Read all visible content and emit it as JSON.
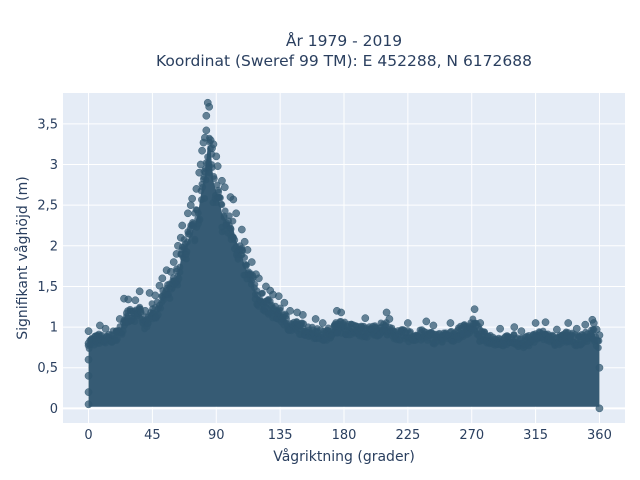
{
  "chart_data": {
    "type": "scatter",
    "title": [
      "År 1979 - 2019",
      "Koordinat (Sweref 99 TM): E 452288, N 6172688"
    ],
    "xlabel": "Vågriktning (grader)",
    "ylabel": "Signifikant våghöjd (m)",
    "xlim": [
      -18,
      378
    ],
    "ylim": [
      -0.18,
      3.88
    ],
    "x_ticks": [
      0,
      45,
      90,
      135,
      180,
      225,
      270,
      315,
      360
    ],
    "x_tick_labels": [
      "0",
      "45",
      "90",
      "135",
      "180",
      "225",
      "270",
      "315",
      "360"
    ],
    "y_ticks": [
      0,
      0.5,
      1,
      1.5,
      2,
      2.5,
      3,
      3.5
    ],
    "y_tick_labels": [
      "0",
      "0,5",
      "1",
      "1,5",
      "2",
      "2,5",
      "3",
      "3,5"
    ],
    "grid": true,
    "marker_color": "#2f566f",
    "plot_bg": "#e5ecf6",
    "series": [
      {
        "points": [
          [
            0,
            0.95
          ],
          [
            0,
            0.8
          ],
          [
            0,
            0.6
          ],
          [
            0,
            0.4
          ],
          [
            0,
            0.2
          ],
          [
            0,
            0.05
          ],
          [
            8,
            1.02
          ],
          [
            12,
            0.98
          ],
          [
            22,
            1.1
          ],
          [
            25,
            1.35
          ],
          [
            28,
            1.34
          ],
          [
            33,
            1.33
          ],
          [
            36,
            1.44
          ],
          [
            40,
            1.2
          ],
          [
            43,
            1.42
          ],
          [
            47,
            1.39
          ],
          [
            50,
            1.51
          ],
          [
            52,
            1.6
          ],
          [
            55,
            1.7
          ],
          [
            58,
            1.68
          ],
          [
            60,
            1.8
          ],
          [
            62,
            1.9
          ],
          [
            63,
            2.0
          ],
          [
            65,
            2.1
          ],
          [
            66,
            2.25
          ],
          [
            70,
            2.4
          ],
          [
            72,
            2.5
          ],
          [
            73,
            2.58
          ],
          [
            76,
            2.7
          ],
          [
            78,
            2.9
          ],
          [
            79,
            3.0
          ],
          [
            80,
            3.17
          ],
          [
            81,
            3.27
          ],
          [
            82,
            3.33
          ],
          [
            83,
            3.42
          ],
          [
            83,
            3.6
          ],
          [
            84,
            3.76
          ],
          [
            85,
            3.71
          ],
          [
            86,
            3.3
          ],
          [
            87,
            3.2
          ],
          [
            88,
            3.25
          ],
          [
            90,
            3.1
          ],
          [
            91,
            2.98
          ],
          [
            94,
            2.8
          ],
          [
            96,
            2.72
          ],
          [
            100,
            2.6
          ],
          [
            102,
            2.57
          ],
          [
            104,
            2.4
          ],
          [
            108,
            2.2
          ],
          [
            110,
            2.05
          ],
          [
            112,
            1.95
          ],
          [
            115,
            1.8
          ],
          [
            118,
            1.65
          ],
          [
            120,
            1.6
          ],
          [
            125,
            1.5
          ],
          [
            128,
            1.45
          ],
          [
            130,
            1.4
          ],
          [
            134,
            1.38
          ],
          [
            138,
            1.3
          ],
          [
            142,
            1.2
          ],
          [
            147,
            1.18
          ],
          [
            151,
            1.15
          ],
          [
            160,
            1.1
          ],
          [
            165,
            1.05
          ],
          [
            175,
            1.2
          ],
          [
            178,
            1.18
          ],
          [
            195,
            1.11
          ],
          [
            210,
            1.18
          ],
          [
            212,
            1.1
          ],
          [
            225,
            1.05
          ],
          [
            238,
            1.07
          ],
          [
            243,
            1.02
          ],
          [
            255,
            1.05
          ],
          [
            272,
            1.22
          ],
          [
            276,
            1.05
          ],
          [
            290,
            0.98
          ],
          [
            300,
            1.0
          ],
          [
            305,
            0.95
          ],
          [
            315,
            1.05
          ],
          [
            322,
            1.06
          ],
          [
            330,
            0.97
          ],
          [
            338,
            1.05
          ],
          [
            344,
            0.98
          ],
          [
            350,
            1.03
          ],
          [
            355,
            1.09
          ],
          [
            356,
            1.05
          ],
          [
            358,
            0.97
          ],
          [
            360,
            0.9
          ],
          [
            360,
            0.0
          ],
          [
            360,
            0.5
          ]
        ]
      }
    ]
  }
}
